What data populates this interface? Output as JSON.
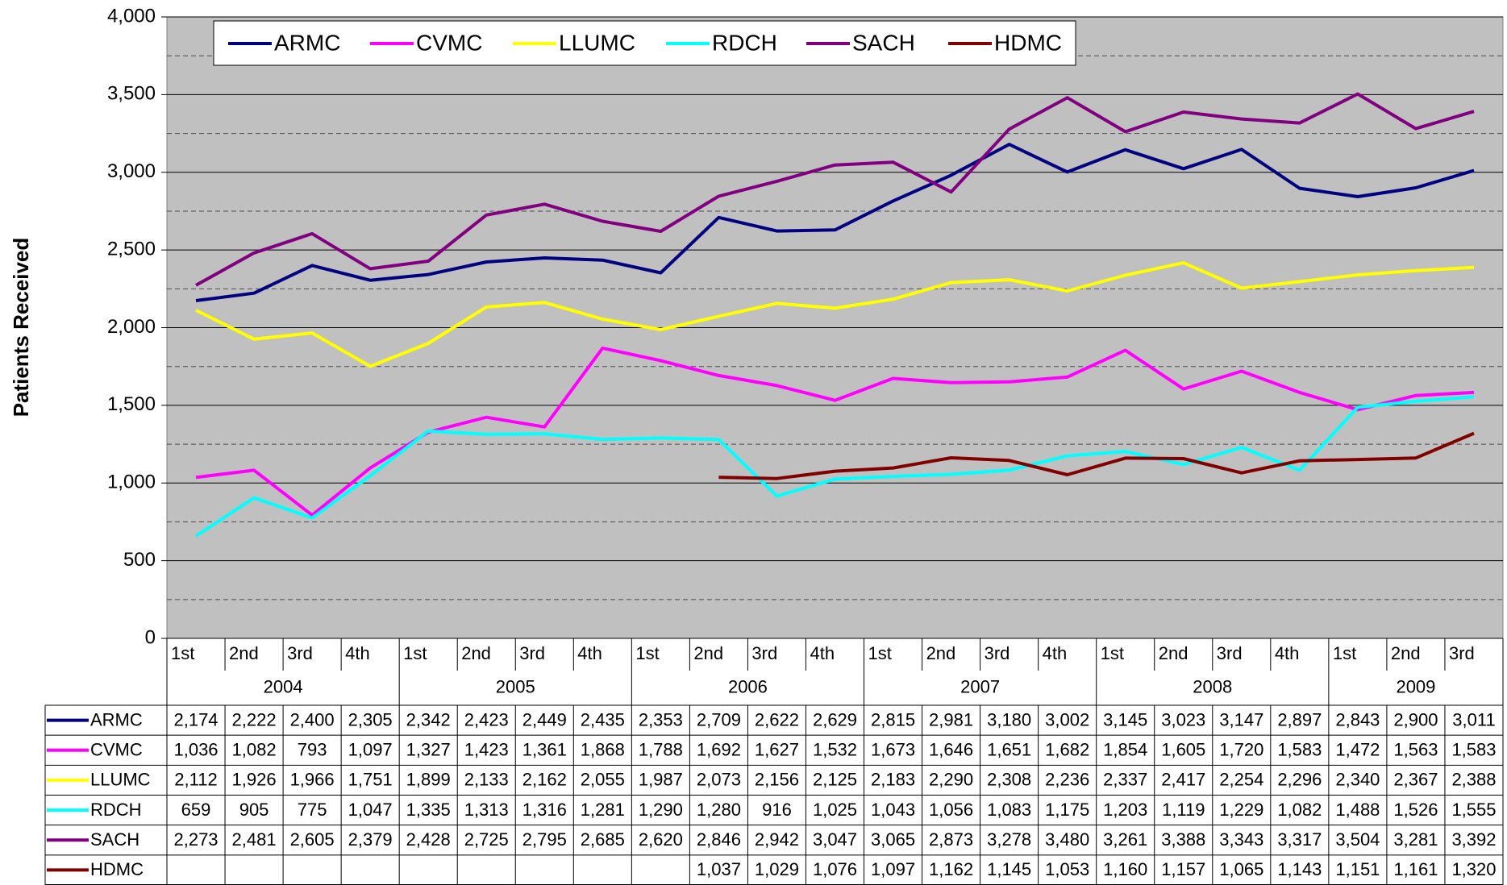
{
  "chart_data": {
    "type": "line",
    "y_label": "Patients Received",
    "categories": [
      "1st",
      "2nd",
      "3rd",
      "4th",
      "1st",
      "2nd",
      "3rd",
      "4th",
      "1st",
      "2nd",
      "3rd",
      "4th",
      "1st",
      "2nd",
      "3rd",
      "4th",
      "1st",
      "2nd",
      "3rd",
      "4th",
      "1st",
      "2nd",
      "3rd"
    ],
    "category_groups": [
      "2004",
      "2004",
      "2004",
      "2004",
      "2005",
      "2005",
      "2005",
      "2005",
      "2006",
      "2006",
      "2006",
      "2006",
      "2007",
      "2007",
      "2007",
      "2007",
      "2008",
      "2008",
      "2008",
      "2008",
      "2009",
      "2009",
      "2009"
    ],
    "ylim": [
      0,
      4000
    ],
    "yticks": [
      0,
      500,
      {
        "value": 1000,
        "label": "1,000"
      },
      {
        "value": 1500,
        "label": "1,500"
      },
      {
        "value": 2000,
        "label": "2,000"
      },
      {
        "value": 2500,
        "label": "2,500"
      },
      {
        "value": 3000,
        "label": "3,000"
      },
      {
        "value": 3500,
        "label": "3,500"
      },
      {
        "value": 4000,
        "label": "4,000"
      }
    ],
    "minor_yticks": [
      250,
      750,
      1250,
      1750,
      2250,
      2750,
      3250,
      3750
    ],
    "grid": true,
    "legend": "top",
    "series": [
      {
        "name": "ARMC",
        "color": "#000080",
        "values": [
          2174,
          2222,
          2400,
          2305,
          2342,
          2423,
          2449,
          2435,
          2353,
          2709,
          2622,
          2629,
          2815,
          2981,
          3180,
          3002,
          3145,
          3023,
          3147,
          2897,
          2843,
          2900,
          3011
        ],
        "value_labels": [
          "2,174",
          "2,222",
          "2,400",
          "2,305",
          "2,342",
          "2,423",
          "2,449",
          "2,435",
          "2,353",
          "2,709",
          "2,622",
          "2,629",
          "2,815",
          "2,981",
          "3,180",
          "3,002",
          "3,145",
          "3,023",
          "3,147",
          "2,897",
          "2,843",
          "2,900",
          "3,011"
        ]
      },
      {
        "name": "CVMC",
        "color": "#ff00ff",
        "values": [
          1036,
          1082,
          793,
          1097,
          1327,
          1423,
          1361,
          1868,
          1788,
          1692,
          1627,
          1532,
          1673,
          1646,
          1651,
          1682,
          1854,
          1605,
          1720,
          1583,
          1472,
          1563,
          1583
        ],
        "value_labels": [
          "1,036",
          "1,082",
          "793",
          "1,097",
          "1,327",
          "1,423",
          "1,361",
          "1,868",
          "1,788",
          "1,692",
          "1,627",
          "1,532",
          "1,673",
          "1,646",
          "1,651",
          "1,682",
          "1,854",
          "1,605",
          "1,720",
          "1,583",
          "1,472",
          "1,563",
          "1,583"
        ]
      },
      {
        "name": "LLUMC",
        "color": "#ffff00",
        "values": [
          2112,
          1926,
          1966,
          1751,
          1899,
          2133,
          2162,
          2055,
          1987,
          2073,
          2156,
          2125,
          2183,
          2290,
          2308,
          2236,
          2337,
          2417,
          2254,
          2296,
          2340,
          2367,
          2388
        ],
        "value_labels": [
          "2,112",
          "1,926",
          "1,966",
          "1,751",
          "1,899",
          "2,133",
          "2,162",
          "2,055",
          "1,987",
          "2,073",
          "2,156",
          "2,125",
          "2,183",
          "2,290",
          "2,308",
          "2,236",
          "2,337",
          "2,417",
          "2,254",
          "2,296",
          "2,340",
          "2,367",
          "2,388"
        ]
      },
      {
        "name": "RDCH",
        "color": "#00ffff",
        "values": [
          659,
          905,
          775,
          1047,
          1335,
          1313,
          1316,
          1281,
          1290,
          1280,
          916,
          1025,
          1043,
          1056,
          1083,
          1175,
          1203,
          1119,
          1229,
          1082,
          1488,
          1526,
          1555
        ],
        "value_labels": [
          "659",
          "905",
          "775",
          "1,047",
          "1,335",
          "1,313",
          "1,316",
          "1,281",
          "1,290",
          "1,280",
          "916",
          "1,025",
          "1,043",
          "1,056",
          "1,083",
          "1,175",
          "1,203",
          "1,119",
          "1,229",
          "1,082",
          "1,488",
          "1,526",
          "1,555"
        ]
      },
      {
        "name": "SACH",
        "color": "#800080",
        "values": [
          2273,
          2481,
          2605,
          2379,
          2428,
          2725,
          2795,
          2685,
          2620,
          2846,
          2942,
          3047,
          3065,
          2873,
          3278,
          3480,
          3261,
          3388,
          3343,
          3317,
          3504,
          3281,
          3392
        ],
        "value_labels": [
          "2,273",
          "2,481",
          "2,605",
          "2,379",
          "2,428",
          "2,725",
          "2,795",
          "2,685",
          "2,620",
          "2,846",
          "2,942",
          "3,047",
          "3,065",
          "2,873",
          "3,278",
          "3,480",
          "3,261",
          "3,388",
          "3,343",
          "3,317",
          "3,504",
          "3,281",
          "3,392"
        ]
      },
      {
        "name": "HDMC",
        "color": "#800000",
        "values": [
          null,
          null,
          null,
          null,
          null,
          null,
          null,
          null,
          null,
          1037,
          1029,
          1076,
          1097,
          1162,
          1145,
          1053,
          1160,
          1157,
          1065,
          1143,
          1151,
          1161,
          1320
        ],
        "value_labels": [
          null,
          null,
          null,
          null,
          null,
          null,
          null,
          null,
          null,
          "1,037",
          "1,029",
          "1,076",
          "1,097",
          "1,162",
          "1,145",
          "1,053",
          "1,160",
          "1,157",
          "1,065",
          "1,143",
          "1,151",
          "1,161",
          "1,320"
        ]
      }
    ]
  }
}
